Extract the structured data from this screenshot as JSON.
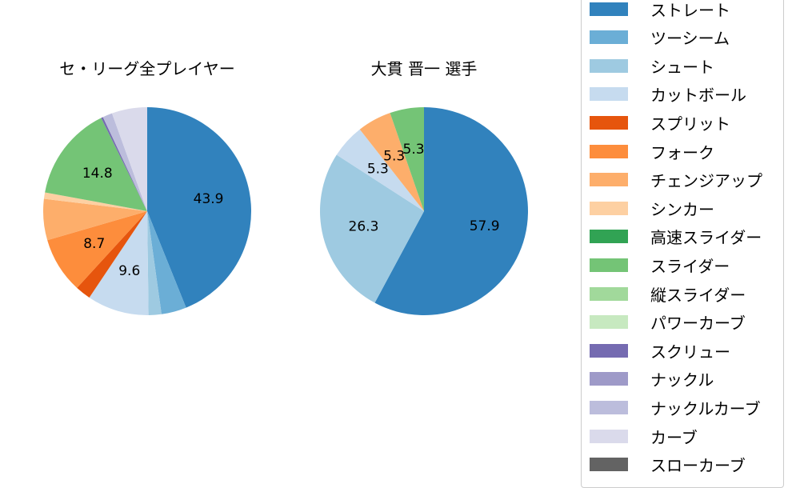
{
  "chart_data": [
    {
      "type": "pie",
      "title": "セ・リーグ全プレイヤー",
      "start_angle": 90,
      "direction": "clockwise",
      "slices": [
        {
          "label": "ストレート",
          "value": 43.9,
          "color": "#3182bd",
          "shown_label": "43.9"
        },
        {
          "label": "ツーシーム",
          "value": 3.9,
          "color": "#6baed6",
          "shown_label": ""
        },
        {
          "label": "シュート",
          "value": 2.0,
          "color": "#9ecae1",
          "shown_label": ""
        },
        {
          "label": "カットボール",
          "value": 9.6,
          "color": "#c6dbef",
          "shown_label": "9.6"
        },
        {
          "label": "スプリット",
          "value": 2.4,
          "color": "#e6550d",
          "shown_label": ""
        },
        {
          "label": "フォーク",
          "value": 8.7,
          "color": "#fd8d3c",
          "shown_label": "8.7"
        },
        {
          "label": "チェンジアップ",
          "value": 6.4,
          "color": "#fdae6b",
          "shown_label": ""
        },
        {
          "label": "シンカー",
          "value": 1.0,
          "color": "#fdd0a2",
          "shown_label": ""
        },
        {
          "label": "スライダー",
          "value": 14.8,
          "color": "#74c476",
          "shown_label": "14.8"
        },
        {
          "label": "スクリュー",
          "value": 0.3,
          "color": "#756bb1",
          "shown_label": ""
        },
        {
          "label": "ナックルカーブ",
          "value": 1.5,
          "color": "#bcbddc",
          "shown_label": ""
        },
        {
          "label": "カーブ",
          "value": 5.5,
          "color": "#dadaeb",
          "shown_label": ""
        }
      ]
    },
    {
      "type": "pie",
      "title": "大貫 晋一  選手",
      "start_angle": 90,
      "direction": "clockwise",
      "slices": [
        {
          "label": "ストレート",
          "value": 57.9,
          "color": "#3182bd",
          "shown_label": "57.9"
        },
        {
          "label": "シュート",
          "value": 26.3,
          "color": "#9ecae1",
          "shown_label": "26.3"
        },
        {
          "label": "カットボール",
          "value": 5.3,
          "color": "#c6dbef",
          "shown_label": "5.3"
        },
        {
          "label": "チェンジアップ",
          "value": 5.3,
          "color": "#fdae6b",
          "shown_label": "5.3"
        },
        {
          "label": "スライダー",
          "value": 5.3,
          "color": "#74c476",
          "shown_label": "5.3"
        }
      ]
    }
  ],
  "titles": {
    "left": "セ・リーグ全プレイヤー",
    "right": "大貫 晋一  選手"
  },
  "legend": [
    {
      "label": "ストレート",
      "color": "#3182bd"
    },
    {
      "label": "ツーシーム",
      "color": "#6baed6"
    },
    {
      "label": "シュート",
      "color": "#9ecae1"
    },
    {
      "label": "カットボール",
      "color": "#c6dbef"
    },
    {
      "label": "スプリット",
      "color": "#e6550d"
    },
    {
      "label": "フォーク",
      "color": "#fd8d3c"
    },
    {
      "label": "チェンジアップ",
      "color": "#fdae6b"
    },
    {
      "label": "シンカー",
      "color": "#fdd0a2"
    },
    {
      "label": "高速スライダー",
      "color": "#31a354"
    },
    {
      "label": "スライダー",
      "color": "#74c476"
    },
    {
      "label": "縦スライダー",
      "color": "#a1d99b"
    },
    {
      "label": "パワーカーブ",
      "color": "#c7e9c0"
    },
    {
      "label": "スクリュー",
      "color": "#756bb1"
    },
    {
      "label": "ナックル",
      "color": "#9e9ac8"
    },
    {
      "label": "ナックルカーブ",
      "color": "#bcbddc"
    },
    {
      "label": "カーブ",
      "color": "#dadaeb"
    },
    {
      "label": "スローカーブ",
      "color": "#636363"
    }
  ]
}
